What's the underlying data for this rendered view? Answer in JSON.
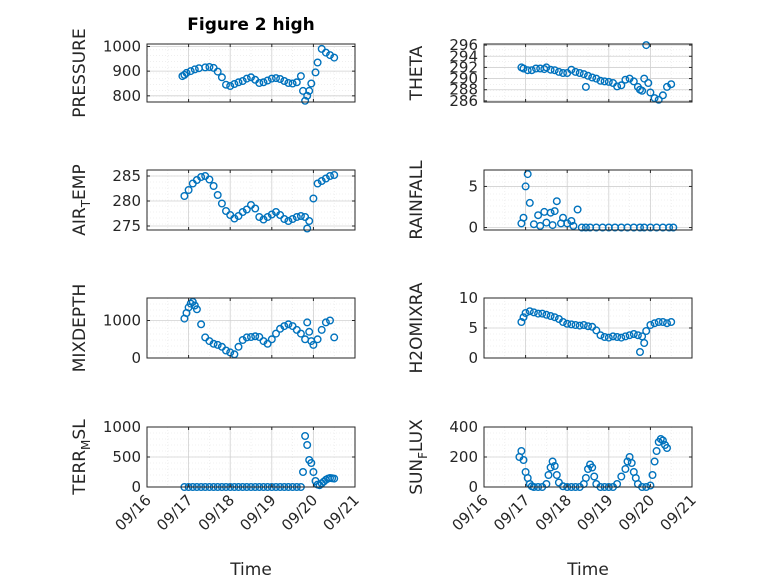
{
  "figure": {
    "title": "Figure 2 high"
  },
  "colors": {
    "marker": "#0072BD",
    "axis": "#262626",
    "grid": "#d0d0d0",
    "grid_minor": "#e6e6e6"
  },
  "chart_data": [
    {
      "type": "scatter",
      "marker": "open-circle",
      "grid": true,
      "title": "Figure 2 high",
      "ylabel": "PRESSURE",
      "ylabel_sub": "",
      "ylabel_tail": "",
      "ylim": [
        775,
        1010
      ],
      "yticks": [
        800,
        900,
        1000
      ],
      "ytick_labels": [
        "800",
        "900",
        "1000"
      ],
      "xlim": [
        16,
        21
      ],
      "xticks": [
        16,
        17,
        18,
        19,
        20,
        21
      ],
      "xtick_labels": [],
      "xlabel": "",
      "x": [
        16.85,
        16.9,
        16.95,
        17.05,
        17.15,
        17.25,
        17.4,
        17.5,
        17.6,
        17.7,
        17.8,
        17.9,
        18.0,
        18.1,
        18.2,
        18.3,
        18.4,
        18.5,
        18.6,
        18.7,
        18.8,
        18.9,
        19.0,
        19.1,
        19.2,
        19.3,
        19.4,
        19.5,
        19.6,
        19.7,
        19.75,
        19.8,
        19.85,
        19.9,
        19.95,
        20.05,
        20.1,
        20.2,
        20.3,
        20.4,
        20.5
      ],
      "y": [
        880,
        885,
        893,
        900,
        907,
        912,
        915,
        917,
        913,
        898,
        875,
        845,
        840,
        848,
        855,
        860,
        870,
        875,
        865,
        852,
        855,
        862,
        870,
        872,
        868,
        860,
        852,
        850,
        855,
        880,
        820,
        780,
        800,
        820,
        850,
        895,
        935,
        990,
        975,
        965,
        955
      ]
    },
    {
      "type": "scatter",
      "marker": "open-circle",
      "grid": true,
      "title": "",
      "ylabel": "THETA",
      "ylabel_sub": "",
      "ylabel_tail": "",
      "ylim": [
        285.8,
        296.2
      ],
      "yticks": [
        286,
        288,
        290,
        292,
        294,
        296
      ],
      "ytick_labels": [
        "286",
        "288",
        "290",
        "292",
        "294",
        "296"
      ],
      "xlim": [
        16,
        21
      ],
      "xticks": [
        16,
        17,
        18,
        19,
        20,
        21
      ],
      "xtick_labels": [],
      "xlabel": "",
      "x": [
        16.9,
        16.95,
        17.05,
        17.15,
        17.25,
        17.35,
        17.45,
        17.5,
        17.6,
        17.7,
        17.8,
        17.9,
        18.0,
        18.1,
        18.2,
        18.3,
        18.4,
        18.45,
        18.5,
        18.6,
        18.7,
        18.8,
        18.9,
        19.0,
        19.1,
        19.2,
        19.3,
        19.4,
        19.5,
        19.6,
        19.7,
        19.75,
        19.8,
        19.85,
        19.9,
        19.95,
        20.0,
        20.1,
        20.2,
        20.3,
        20.4,
        20.5
      ],
      "y": [
        292.0,
        291.8,
        291.5,
        291.5,
        291.8,
        291.8,
        291.7,
        292.0,
        291.6,
        291.5,
        291.2,
        291.0,
        291.0,
        291.6,
        291.2,
        291.0,
        290.8,
        288.5,
        290.5,
        290.2,
        290.0,
        289.6,
        289.5,
        289.4,
        289.2,
        288.6,
        288.8,
        289.8,
        290.0,
        289.5,
        288.5,
        288.0,
        287.8,
        290.0,
        296.0,
        289.2,
        287.5,
        286.5,
        286.2,
        287.0,
        288.5,
        289.0
      ]
    },
    {
      "type": "scatter",
      "marker": "open-circle",
      "grid": true,
      "title": "",
      "ylabel": "AIR",
      "ylabel_sub": "T",
      "ylabel_tail": "EMP",
      "ylim": [
        274.2,
        286.2
      ],
      "yticks": [
        275,
        280,
        285
      ],
      "ytick_labels": [
        "275",
        "280",
        "285"
      ],
      "xlim": [
        16,
        21
      ],
      "xticks": [
        16,
        17,
        18,
        19,
        20,
        21
      ],
      "xtick_labels": [],
      "xlabel": "",
      "x": [
        16.9,
        17.0,
        17.1,
        17.2,
        17.3,
        17.4,
        17.5,
        17.6,
        17.7,
        17.8,
        17.9,
        18.0,
        18.1,
        18.2,
        18.3,
        18.4,
        18.5,
        18.6,
        18.7,
        18.8,
        18.9,
        19.0,
        19.1,
        19.2,
        19.3,
        19.4,
        19.5,
        19.6,
        19.7,
        19.8,
        19.85,
        19.9,
        20.0,
        20.1,
        20.2,
        20.3,
        20.4,
        20.5
      ],
      "y": [
        281.0,
        282.2,
        283.5,
        284.2,
        284.8,
        285.0,
        284.3,
        283.0,
        281.2,
        279.5,
        278.0,
        277.2,
        276.5,
        277.0,
        277.8,
        278.3,
        279.2,
        278.5,
        276.8,
        276.3,
        276.8,
        277.3,
        277.8,
        277.2,
        276.4,
        276.0,
        276.4,
        276.8,
        277.0,
        276.8,
        274.5,
        276.0,
        280.5,
        283.5,
        284.0,
        284.5,
        285.0,
        285.2
      ]
    },
    {
      "type": "scatter",
      "marker": "open-circle",
      "grid": true,
      "title": "",
      "ylabel": "RAINFALL",
      "ylabel_sub": "",
      "ylabel_tail": "",
      "ylim": [
        -0.3,
        7.0
      ],
      "yticks": [
        0,
        5
      ],
      "ytick_labels": [
        "0",
        "5"
      ],
      "xlim": [
        16,
        21
      ],
      "xticks": [
        16,
        17,
        18,
        19,
        20,
        21
      ],
      "xtick_labels": [],
      "xlabel": "",
      "x": [
        16.9,
        16.95,
        17.0,
        17.05,
        17.1,
        17.2,
        17.3,
        17.35,
        17.45,
        17.5,
        17.6,
        17.65,
        17.7,
        17.75,
        17.85,
        17.9,
        18.0,
        18.1,
        18.15,
        18.25,
        18.35,
        18.45,
        18.55,
        18.7,
        18.85,
        19.0,
        19.15,
        19.3,
        19.45,
        19.6,
        19.75,
        19.85,
        20.0,
        20.15,
        20.3,
        20.45,
        20.55
      ],
      "y": [
        0.5,
        1.2,
        5.0,
        6.5,
        3.0,
        0.4,
        1.5,
        0.2,
        1.9,
        0.6,
        1.8,
        0.3,
        2.0,
        3.2,
        0.5,
        1.2,
        0.5,
        0.8,
        0.2,
        2.2,
        0.0,
        0.0,
        0.0,
        0.0,
        0.0,
        0.0,
        0.0,
        0.0,
        0.0,
        0.0,
        0.0,
        0.0,
        0.0,
        0.0,
        0.0,
        0.0,
        0.0
      ]
    },
    {
      "type": "scatter",
      "marker": "open-circle",
      "grid": true,
      "title": "",
      "ylabel": "MIXDEPTH",
      "ylabel_sub": "",
      "ylabel_tail": "",
      "ylim": [
        0,
        1600
      ],
      "yticks": [
        0,
        1000
      ],
      "ytick_labels": [
        "0",
        "1000"
      ],
      "xlim": [
        16,
        21
      ],
      "xticks": [
        16,
        17,
        18,
        19,
        20,
        21
      ],
      "xtick_labels": [],
      "xlabel": "",
      "x": [
        16.9,
        16.95,
        17.0,
        17.05,
        17.1,
        17.15,
        17.2,
        17.3,
        17.4,
        17.5,
        17.6,
        17.7,
        17.8,
        17.9,
        18.0,
        18.1,
        18.2,
        18.3,
        18.4,
        18.5,
        18.6,
        18.7,
        18.8,
        18.9,
        19.0,
        19.1,
        19.2,
        19.3,
        19.4,
        19.5,
        19.6,
        19.7,
        19.8,
        19.85,
        19.9,
        19.95,
        20.0,
        20.1,
        20.2,
        20.3,
        20.4,
        20.5
      ],
      "y": [
        1050,
        1200,
        1350,
        1450,
        1500,
        1400,
        1300,
        900,
        550,
        450,
        380,
        350,
        300,
        200,
        150,
        100,
        300,
        480,
        550,
        560,
        580,
        560,
        450,
        380,
        500,
        650,
        780,
        850,
        900,
        850,
        750,
        650,
        500,
        950,
        700,
        450,
        350,
        500,
        750,
        950,
        1000,
        550
      ]
    },
    {
      "type": "scatter",
      "marker": "open-circle",
      "grid": true,
      "title": "",
      "ylabel": "H2OMIXRA",
      "ylabel_sub": "",
      "ylabel_tail": "",
      "ylim": [
        0,
        10
      ],
      "yticks": [
        0,
        5,
        10
      ],
      "ytick_labels": [
        "0",
        "5",
        "10"
      ],
      "xlim": [
        16,
        21
      ],
      "xticks": [
        16,
        17,
        18,
        19,
        20,
        21
      ],
      "xtick_labels": [],
      "xlabel": "",
      "x": [
        16.9,
        16.95,
        17.0,
        17.1,
        17.2,
        17.3,
        17.4,
        17.5,
        17.6,
        17.7,
        17.8,
        17.9,
        18.0,
        18.1,
        18.2,
        18.3,
        18.4,
        18.5,
        18.6,
        18.7,
        18.8,
        18.9,
        19.0,
        19.1,
        19.2,
        19.3,
        19.4,
        19.5,
        19.6,
        19.7,
        19.75,
        19.8,
        19.85,
        19.9,
        20.0,
        20.1,
        20.2,
        20.3,
        20.4,
        20.5
      ],
      "y": [
        6.0,
        6.8,
        7.5,
        7.8,
        7.6,
        7.4,
        7.4,
        7.2,
        7.0,
        6.8,
        6.5,
        6.0,
        5.7,
        5.6,
        5.5,
        5.4,
        5.5,
        5.3,
        5.2,
        4.6,
        3.8,
        3.5,
        3.4,
        3.6,
        3.5,
        3.4,
        3.6,
        3.8,
        4.0,
        3.8,
        1.0,
        3.6,
        2.5,
        4.5,
        5.5,
        5.8,
        6.0,
        6.0,
        5.8,
        6.0
      ]
    },
    {
      "type": "scatter",
      "marker": "open-circle",
      "grid": true,
      "title": "",
      "ylabel": "TERR",
      "ylabel_sub": "M",
      "ylabel_tail": "SL",
      "ylim": [
        0,
        1000
      ],
      "yticks": [
        0,
        500,
        1000
      ],
      "ytick_labels": [
        "0",
        "500",
        "1000"
      ],
      "xlim": [
        16,
        21
      ],
      "xticks": [
        16,
        17,
        18,
        19,
        20,
        21
      ],
      "xtick_labels": [
        "09/16",
        "09/17",
        "09/18",
        "09/19",
        "09/20",
        "09/21"
      ],
      "xlabel": "Time",
      "x": [
        16.9,
        17.0,
        17.1,
        17.2,
        17.3,
        17.4,
        17.5,
        17.6,
        17.7,
        17.8,
        17.9,
        18.0,
        18.1,
        18.2,
        18.3,
        18.4,
        18.5,
        18.6,
        18.7,
        18.8,
        18.9,
        19.0,
        19.1,
        19.2,
        19.3,
        19.4,
        19.5,
        19.6,
        19.7,
        19.75,
        19.8,
        19.85,
        19.9,
        19.95,
        20.0,
        20.05,
        20.1,
        20.15,
        20.2,
        20.25,
        20.3,
        20.35,
        20.4,
        20.45,
        20.5
      ],
      "y": [
        0,
        0,
        0,
        0,
        0,
        0,
        0,
        0,
        0,
        0,
        0,
        0,
        0,
        0,
        0,
        0,
        0,
        0,
        0,
        0,
        0,
        0,
        0,
        0,
        0,
        0,
        0,
        0,
        0,
        250,
        850,
        700,
        450,
        400,
        250,
        100,
        40,
        30,
        60,
        90,
        120,
        140,
        150,
        145,
        140
      ]
    },
    {
      "type": "scatter",
      "marker": "open-circle",
      "grid": true,
      "title": "",
      "ylabel": "SUN",
      "ylabel_sub": "F",
      "ylabel_tail": "LUX",
      "ylim": [
        0,
        400
      ],
      "yticks": [
        0,
        200,
        400
      ],
      "ytick_labels": [
        "0",
        "200",
        "400"
      ],
      "xlim": [
        16,
        21
      ],
      "xticks": [
        16,
        17,
        18,
        19,
        20,
        21
      ],
      "xtick_labels": [
        "09/16",
        "09/17",
        "09/18",
        "09/19",
        "09/20",
        "09/21"
      ],
      "xlabel": "Time",
      "x": [
        16.85,
        16.9,
        16.95,
        17.0,
        17.05,
        17.1,
        17.15,
        17.2,
        17.3,
        17.4,
        17.5,
        17.55,
        17.6,
        17.65,
        17.7,
        17.75,
        17.8,
        17.9,
        18.0,
        18.1,
        18.2,
        18.3,
        18.4,
        18.45,
        18.5,
        18.55,
        18.6,
        18.65,
        18.7,
        18.8,
        18.9,
        19.0,
        19.1,
        19.2,
        19.3,
        19.4,
        19.45,
        19.5,
        19.55,
        19.6,
        19.65,
        19.7,
        19.8,
        19.9,
        20.0,
        20.05,
        20.1,
        20.15,
        20.2,
        20.25,
        20.3,
        20.35,
        20.4
      ],
      "y": [
        200,
        240,
        180,
        100,
        60,
        20,
        5,
        0,
        0,
        0,
        20,
        80,
        130,
        170,
        140,
        80,
        30,
        5,
        0,
        0,
        0,
        0,
        20,
        60,
        120,
        150,
        130,
        70,
        20,
        0,
        0,
        0,
        0,
        20,
        70,
        120,
        170,
        200,
        160,
        100,
        60,
        20,
        0,
        0,
        10,
        80,
        170,
        240,
        300,
        320,
        310,
        280,
        260
      ]
    }
  ]
}
